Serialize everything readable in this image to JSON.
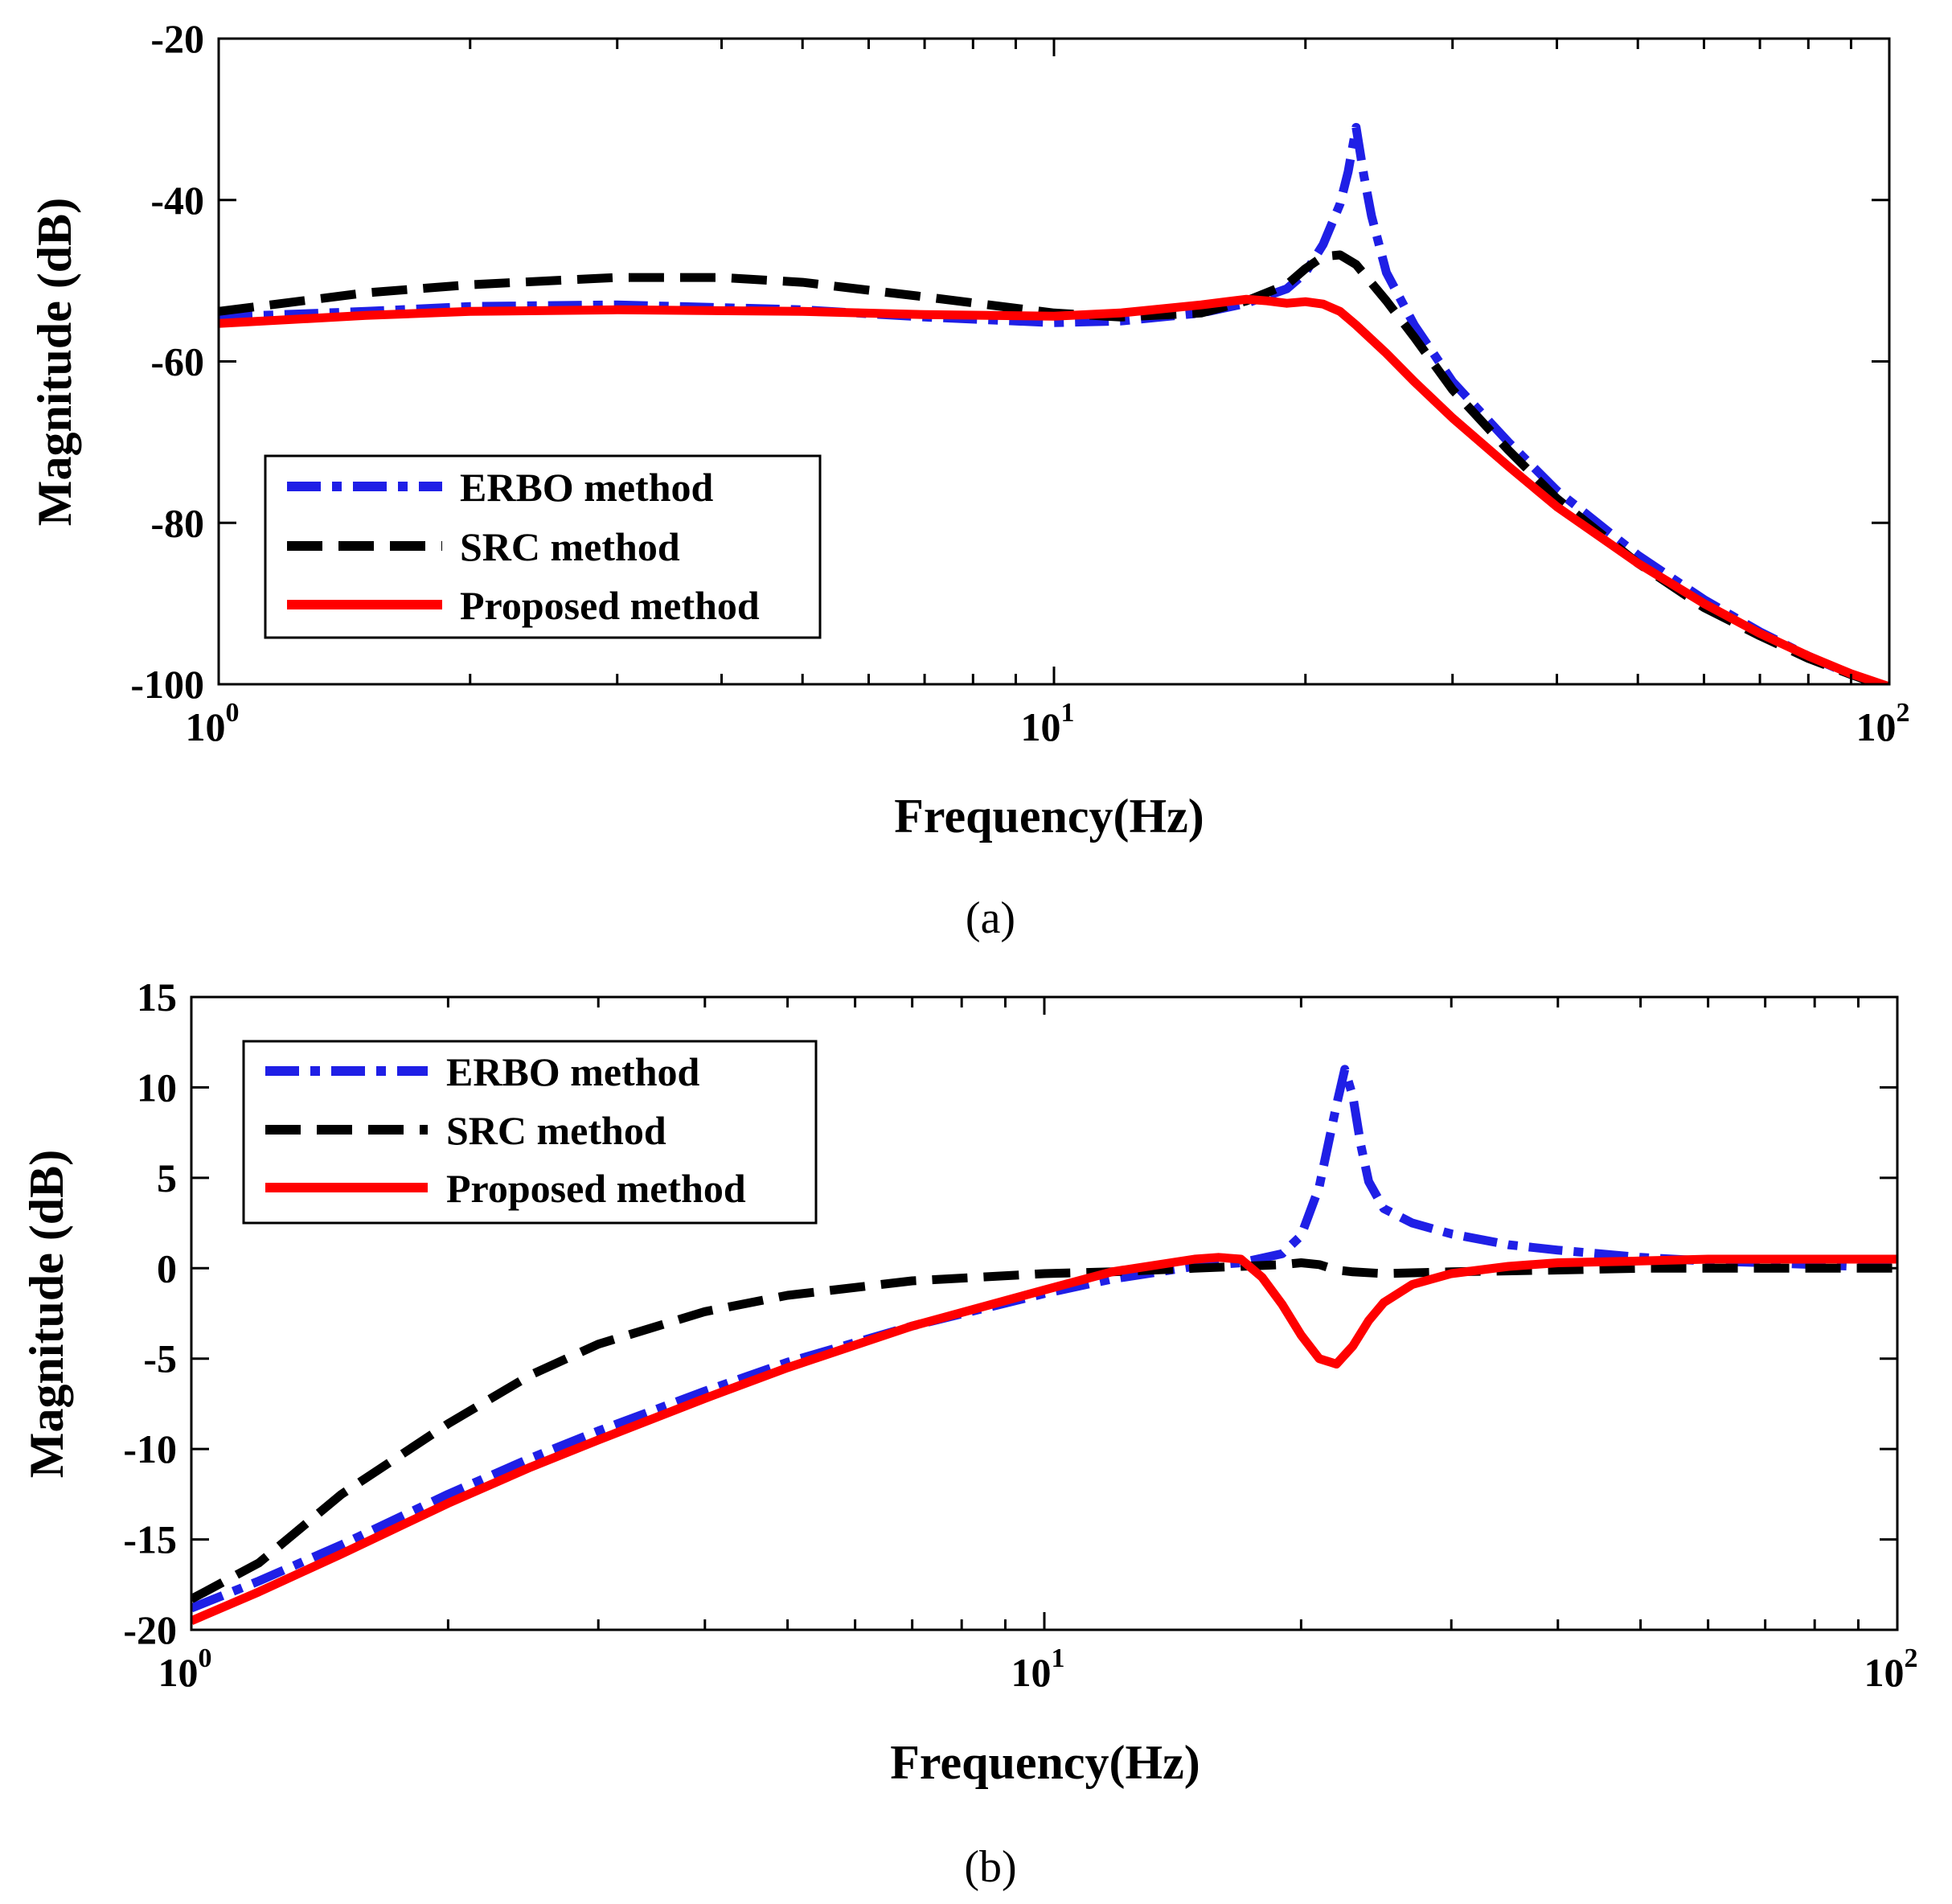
{
  "chart_data": [
    {
      "type": "line",
      "panel": "(a)",
      "caption": "(a)",
      "xlabel": "Frequency(Hz)",
      "ylabel": "Magnitude (dB)",
      "xscale": "log",
      "xlim": [
        1,
        100
      ],
      "ylim": [
        -100,
        -20
      ],
      "yticks": [
        -20,
        -40,
        -60,
        -80,
        -100
      ],
      "ytick_labels": [
        "-20",
        "-40",
        "-60",
        "-80",
        "-100"
      ],
      "xticks": [
        {
          "value": 1,
          "base": "10",
          "exp": "0"
        },
        {
          "value": 10,
          "base": "10",
          "exp": "1"
        },
        {
          "value": 100,
          "base": "10",
          "exp": "2"
        }
      ],
      "legend_position": "lower-left",
      "series": [
        {
          "name": "ERBO method",
          "style": "dashdot",
          "color": "#1f1fe6",
          "x": [
            1,
            1.5,
            2,
            3,
            5,
            7,
            10,
            12,
            15,
            17,
            19,
            20,
            21,
            22,
            22.5,
            23,
            23.5,
            24,
            25,
            27,
            30,
            35,
            40,
            50,
            60,
            70,
            80,
            90,
            100
          ],
          "y": [
            -54.5,
            -53.8,
            -53.2,
            -53.0,
            -53.6,
            -54.5,
            -55.2,
            -55.0,
            -54.0,
            -52.8,
            -51.0,
            -49.0,
            -45.5,
            -40.5,
            -36.5,
            -31.0,
            -37.0,
            -42.0,
            -49.0,
            -55.5,
            -62.5,
            -70.0,
            -76.0,
            -84.0,
            -89.5,
            -93.5,
            -96.5,
            -98.8,
            -100.5
          ]
        },
        {
          "name": "SRC method",
          "style": "dashed",
          "color": "#000000",
          "x": [
            1,
            1.5,
            2,
            3,
            4,
            5,
            7,
            10,
            12,
            15,
            17,
            19,
            20,
            21,
            22,
            23,
            25,
            27,
            30,
            35,
            40,
            50,
            60,
            70,
            80,
            90,
            100
          ],
          "y": [
            -53.8,
            -51.5,
            -50.5,
            -49.6,
            -49.6,
            -50.2,
            -52.0,
            -54.0,
            -54.5,
            -54.0,
            -52.5,
            -50.5,
            -48.5,
            -47.0,
            -46.8,
            -48.0,
            -52.5,
            -57.0,
            -63.5,
            -71.0,
            -77.0,
            -85.0,
            -90.5,
            -94.0,
            -96.8,
            -98.8,
            -100.5
          ]
        },
        {
          "name": "Proposed method",
          "style": "solid",
          "color": "#ff0000",
          "x": [
            1,
            1.5,
            2,
            3,
            5,
            7,
            10,
            12,
            15,
            17,
            18,
            19,
            20,
            21,
            22,
            23,
            25,
            27,
            30,
            35,
            40,
            50,
            60,
            70,
            80,
            90,
            100
          ],
          "y": [
            -55.3,
            -54.3,
            -53.8,
            -53.6,
            -53.8,
            -54.2,
            -54.4,
            -54.0,
            -53.0,
            -52.3,
            -52.5,
            -52.8,
            -52.6,
            -52.9,
            -53.8,
            -55.5,
            -59.0,
            -62.5,
            -67.0,
            -73.0,
            -78.0,
            -85.0,
            -90.0,
            -93.7,
            -96.5,
            -98.7,
            -100.3
          ]
        }
      ]
    },
    {
      "type": "line",
      "panel": "(b)",
      "caption": "(b)",
      "xlabel": "Frequency(Hz)",
      "ylabel": "Magnitude (dB)",
      "xscale": "log",
      "xlim": [
        1,
        100
      ],
      "ylim": [
        -20,
        15
      ],
      "yticks": [
        15,
        10,
        5,
        0,
        -5,
        -10,
        -15,
        -20
      ],
      "ytick_labels": [
        "15",
        "10",
        "5",
        "0",
        "-5",
        "-10",
        "-15",
        "-20"
      ],
      "xticks": [
        {
          "value": 1,
          "base": "10",
          "exp": "0"
        },
        {
          "value": 10,
          "base": "10",
          "exp": "1"
        },
        {
          "value": 100,
          "base": "10",
          "exp": "2"
        }
      ],
      "legend_position": "top-left",
      "series": [
        {
          "name": "ERBO method",
          "style": "dashdot",
          "color": "#1f1fe6",
          "x": [
            1,
            1.2,
            1.5,
            2,
            2.5,
            3,
            4,
            5,
            7,
            10,
            12,
            15,
            17,
            19,
            20,
            21,
            22,
            22.5,
            23,
            23.5,
            24,
            25,
            27,
            30,
            35,
            40,
            50,
            60,
            70,
            80,
            100
          ],
          "y": [
            -18.8,
            -17.3,
            -15.3,
            -12.5,
            -10.5,
            -9.0,
            -6.8,
            -5.2,
            -3.2,
            -1.4,
            -0.6,
            0.1,
            0.3,
            0.8,
            1.8,
            4.5,
            9.0,
            11.0,
            9.5,
            6.8,
            4.8,
            3.3,
            2.5,
            1.9,
            1.3,
            1.0,
            0.6,
            0.4,
            0.3,
            0.2,
            0.0
          ]
        },
        {
          "name": "SRC method",
          "style": "dashed",
          "color": "#000000",
          "x": [
            1,
            1.2,
            1.5,
            2,
            2.5,
            3,
            4,
            5,
            7,
            10,
            12,
            15,
            17,
            19,
            20,
            21,
            22,
            23,
            25,
            30,
            40,
            50,
            60,
            80,
            100
          ],
          "y": [
            -18.3,
            -16.3,
            -12.5,
            -8.6,
            -5.9,
            -4.2,
            -2.4,
            -1.5,
            -0.7,
            -0.3,
            -0.2,
            0.0,
            0.1,
            0.2,
            0.3,
            0.2,
            -0.1,
            -0.2,
            -0.3,
            -0.2,
            -0.1,
            0.0,
            0.0,
            0.0,
            0.0
          ]
        },
        {
          "name": "Proposed method",
          "style": "solid",
          "color": "#ff0000",
          "x": [
            1,
            1.2,
            1.5,
            2,
            2.5,
            3,
            4,
            5,
            7,
            10,
            12,
            15,
            16,
            17,
            18,
            19,
            20,
            21,
            22,
            23,
            24,
            25,
            27,
            30,
            35,
            40,
            50,
            60,
            70,
            80,
            100
          ],
          "y": [
            -19.5,
            -17.9,
            -15.8,
            -13.0,
            -11.0,
            -9.5,
            -7.2,
            -5.5,
            -3.2,
            -1.2,
            -0.2,
            0.5,
            0.6,
            0.5,
            -0.5,
            -2.0,
            -3.7,
            -5.0,
            -5.3,
            -4.3,
            -2.9,
            -1.9,
            -0.9,
            -0.3,
            0.1,
            0.3,
            0.4,
            0.5,
            0.5,
            0.5,
            0.5
          ]
        }
      ]
    }
  ]
}
